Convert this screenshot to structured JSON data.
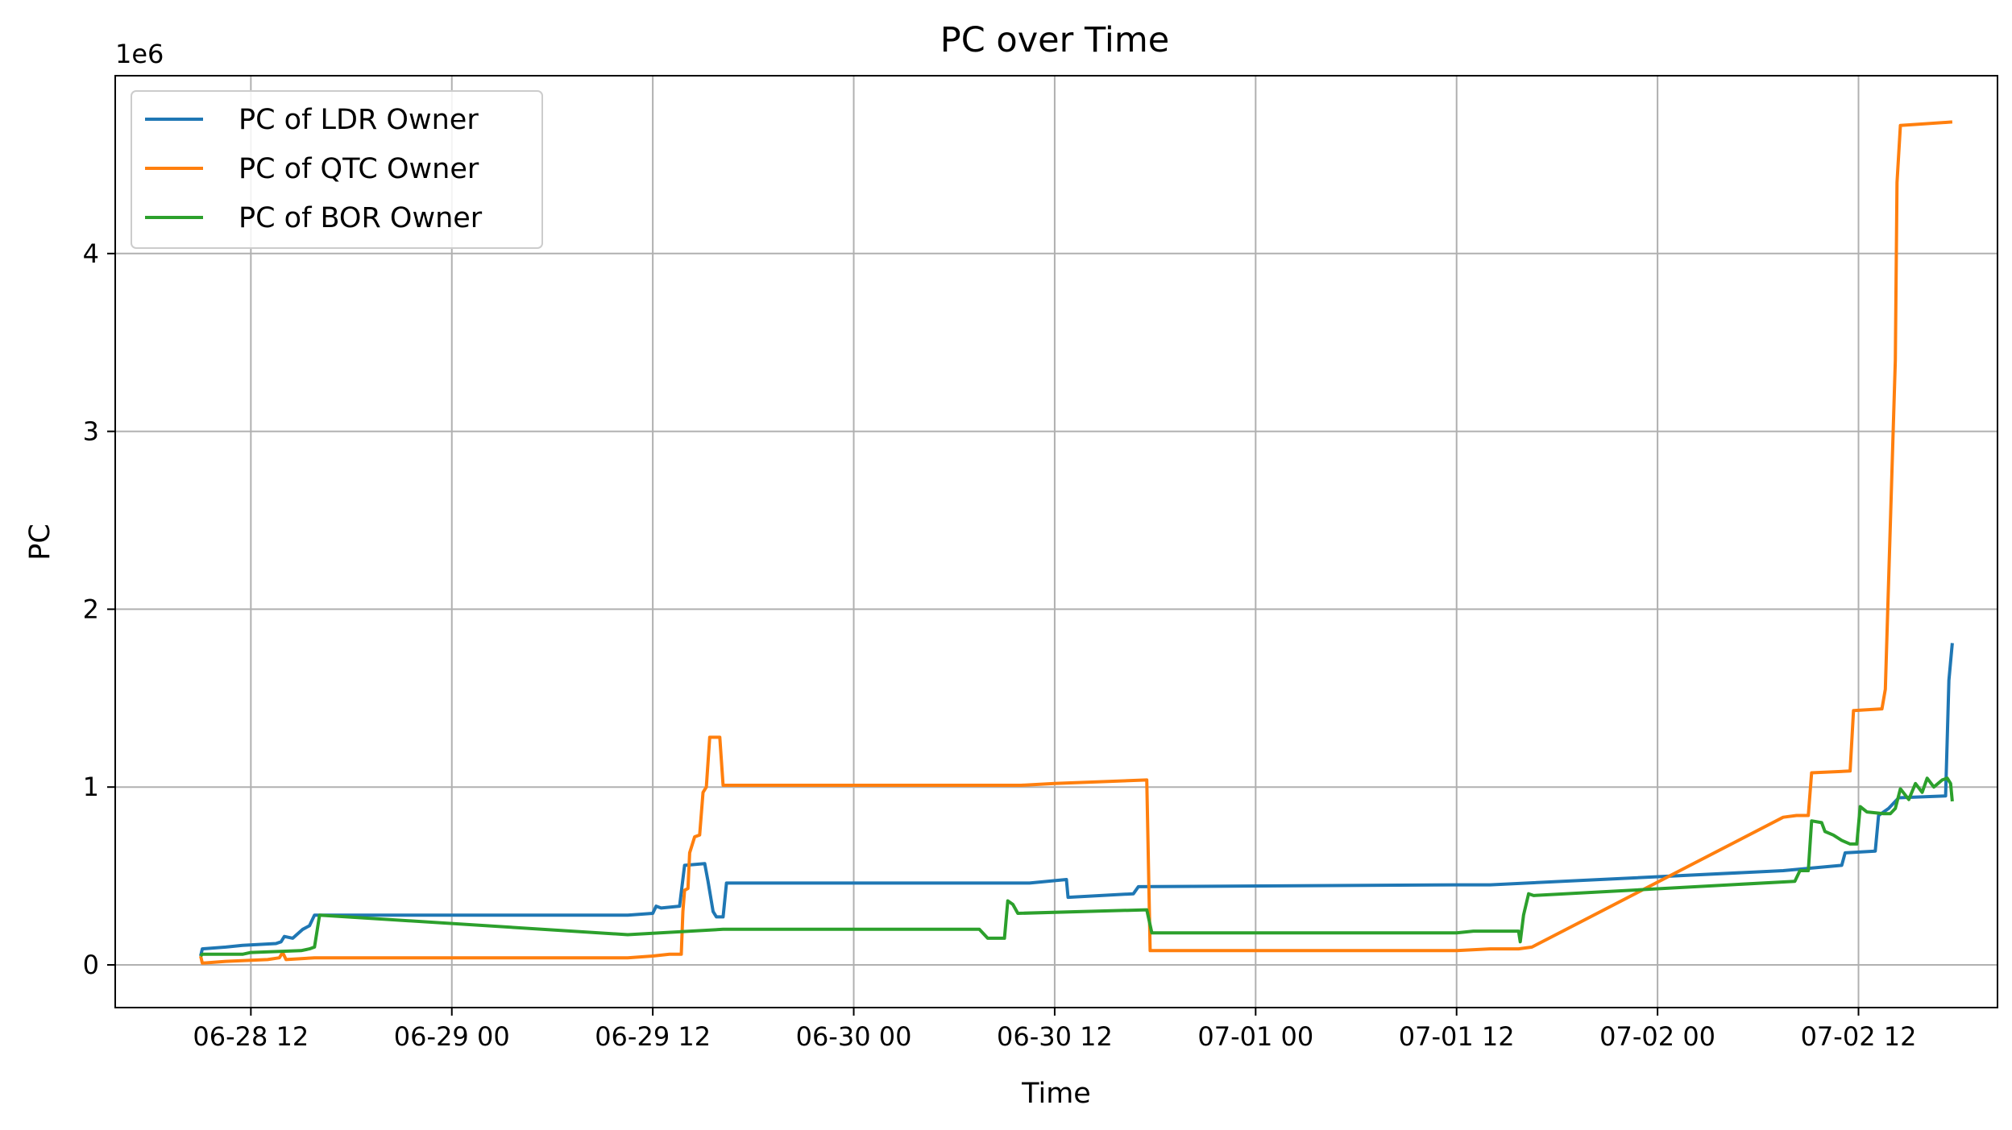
{
  "chart_data": {
    "type": "line",
    "title": "PC over Time",
    "xlabel": "Time",
    "ylabel": "PC",
    "y_offset_label": "1e6",
    "x_tick_labels": [
      "06-28 12",
      "06-29 00",
      "06-29 12",
      "06-30 00",
      "06-30 12",
      "07-01 00",
      "07-01 12",
      "07-02 00",
      "07-02 12"
    ],
    "x_tick_values": [
      0,
      12,
      24,
      36,
      48,
      60,
      72,
      84,
      96
    ],
    "y_tick_labels": [
      "0",
      "1",
      "2",
      "3",
      "4"
    ],
    "y_tick_values": [
      0,
      1,
      2,
      3,
      4
    ],
    "xlim": [
      -8.1,
      104.3
    ],
    "ylim": [
      -0.24,
      5.0
    ],
    "grid": true,
    "legend_position": "top-left",
    "x_units": "hours from 06-28 12:00",
    "y_units": "millions",
    "colors": {
      "LDR": "#1f77b4",
      "QTC": "#ff7f0e",
      "BOR": "#2ca02c",
      "grid": "#b0b0b0"
    },
    "series": [
      {
        "name": "PC of LDR Owner",
        "color": "#1f77b4",
        "points": [
          [
            -3.0,
            0.05
          ],
          [
            -2.9,
            0.09
          ],
          [
            -1.5,
            0.1
          ],
          [
            -0.5,
            0.11
          ],
          [
            1.5,
            0.12
          ],
          [
            1.8,
            0.13
          ],
          [
            2.0,
            0.16
          ],
          [
            2.5,
            0.15
          ],
          [
            3.1,
            0.2
          ],
          [
            3.5,
            0.22
          ],
          [
            3.8,
            0.28
          ],
          [
            22.5,
            0.28
          ],
          [
            24.0,
            0.29
          ],
          [
            24.2,
            0.33
          ],
          [
            24.5,
            0.32
          ],
          [
            25.6,
            0.33
          ],
          [
            25.9,
            0.56
          ],
          [
            27.1,
            0.57
          ],
          [
            27.3,
            0.47
          ],
          [
            27.6,
            0.3
          ],
          [
            27.8,
            0.27
          ],
          [
            28.2,
            0.27
          ],
          [
            28.4,
            0.46
          ],
          [
            46.5,
            0.46
          ],
          [
            48.7,
            0.48
          ],
          [
            48.8,
            0.38
          ],
          [
            52.7,
            0.4
          ],
          [
            53.0,
            0.44
          ],
          [
            72.0,
            0.45
          ],
          [
            74.0,
            0.45
          ],
          [
            91.5,
            0.53
          ],
          [
            95.0,
            0.56
          ],
          [
            95.2,
            0.63
          ],
          [
            97.0,
            0.64
          ],
          [
            97.2,
            0.84
          ],
          [
            97.8,
            0.88
          ],
          [
            98.4,
            0.94
          ],
          [
            101.2,
            0.95
          ],
          [
            101.4,
            1.6
          ],
          [
            101.6,
            1.81
          ]
        ]
      },
      {
        "name": "PC of QTC Owner",
        "color": "#ff7f0e",
        "points": [
          [
            -3.0,
            0.05
          ],
          [
            -2.9,
            0.01
          ],
          [
            -1.5,
            0.02
          ],
          [
            1.0,
            0.03
          ],
          [
            1.7,
            0.04
          ],
          [
            1.9,
            0.07
          ],
          [
            2.1,
            0.03
          ],
          [
            3.8,
            0.04
          ],
          [
            22.5,
            0.04
          ],
          [
            24.0,
            0.05
          ],
          [
            25.0,
            0.06
          ],
          [
            25.7,
            0.06
          ],
          [
            25.8,
            0.3
          ],
          [
            25.9,
            0.42
          ],
          [
            26.1,
            0.43
          ],
          [
            26.2,
            0.63
          ],
          [
            26.5,
            0.72
          ],
          [
            26.8,
            0.73
          ],
          [
            27.0,
            0.97
          ],
          [
            27.2,
            1.0
          ],
          [
            27.4,
            1.28
          ],
          [
            28.0,
            1.28
          ],
          [
            28.2,
            1.01
          ],
          [
            46.0,
            1.01
          ],
          [
            48.0,
            1.02
          ],
          [
            53.5,
            1.04
          ],
          [
            53.7,
            0.08
          ],
          [
            72.0,
            0.08
          ],
          [
            74.0,
            0.09
          ],
          [
            75.7,
            0.09
          ],
          [
            76.5,
            0.1
          ],
          [
            91.5,
            0.83
          ],
          [
            92.3,
            0.84
          ],
          [
            93.0,
            0.84
          ],
          [
            93.2,
            1.08
          ],
          [
            95.5,
            1.09
          ],
          [
            95.7,
            1.43
          ],
          [
            97.4,
            1.44
          ],
          [
            97.6,
            1.55
          ],
          [
            98.2,
            3.4
          ],
          [
            98.3,
            4.4
          ],
          [
            98.5,
            4.72
          ],
          [
            101.6,
            4.74
          ]
        ]
      },
      {
        "name": "PC of BOR Owner",
        "color": "#2ca02c",
        "points": [
          [
            -3.0,
            0.05
          ],
          [
            -2.9,
            0.06
          ],
          [
            -0.5,
            0.06
          ],
          [
            0,
            0.07
          ],
          [
            3.0,
            0.08
          ],
          [
            3.5,
            0.09
          ],
          [
            3.8,
            0.1
          ],
          [
            4.1,
            0.28
          ],
          [
            22.5,
            0.17
          ],
          [
            28.2,
            0.2
          ],
          [
            43.5,
            0.2
          ],
          [
            44.0,
            0.15
          ],
          [
            45.0,
            0.15
          ],
          [
            45.2,
            0.36
          ],
          [
            45.5,
            0.34
          ],
          [
            45.8,
            0.29
          ],
          [
            53.5,
            0.31
          ],
          [
            53.8,
            0.18
          ],
          [
            72.0,
            0.18
          ],
          [
            73.0,
            0.19
          ],
          [
            75.7,
            0.19
          ],
          [
            75.8,
            0.13
          ],
          [
            76.0,
            0.28
          ],
          [
            76.3,
            0.4
          ],
          [
            76.6,
            0.39
          ],
          [
            92.2,
            0.47
          ],
          [
            92.5,
            0.53
          ],
          [
            93.0,
            0.53
          ],
          [
            93.2,
            0.81
          ],
          [
            93.8,
            0.8
          ],
          [
            94.0,
            0.75
          ],
          [
            94.5,
            0.73
          ],
          [
            95.0,
            0.7
          ],
          [
            95.5,
            0.68
          ],
          [
            95.9,
            0.68
          ],
          [
            96.1,
            0.89
          ],
          [
            96.5,
            0.86
          ],
          [
            97.5,
            0.85
          ],
          [
            97.9,
            0.85
          ],
          [
            98.2,
            0.88
          ],
          [
            98.5,
            0.99
          ],
          [
            99.0,
            0.93
          ],
          [
            99.4,
            1.02
          ],
          [
            99.8,
            0.97
          ],
          [
            100.1,
            1.05
          ],
          [
            100.5,
            1.0
          ],
          [
            101.0,
            1.04
          ],
          [
            101.3,
            1.05
          ],
          [
            101.5,
            1.02
          ],
          [
            101.6,
            0.92
          ]
        ]
      }
    ]
  }
}
